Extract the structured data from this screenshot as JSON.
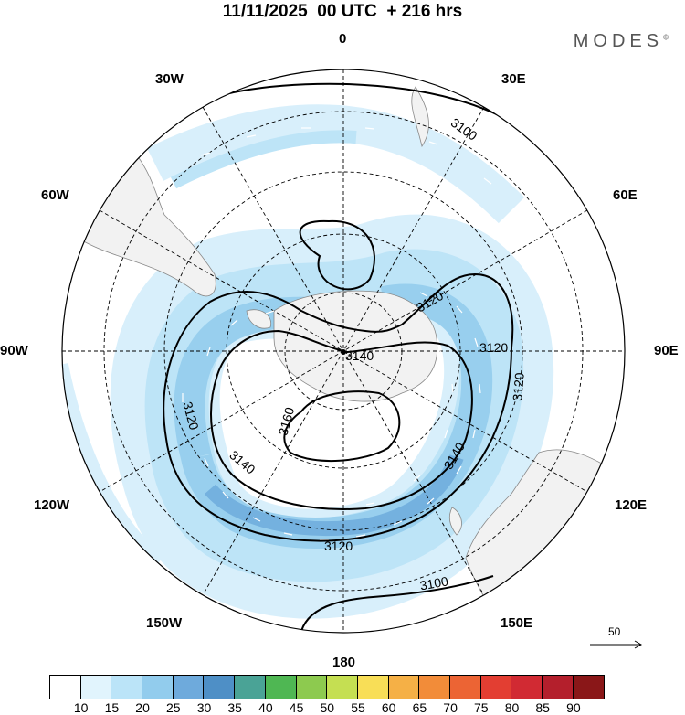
{
  "header": {
    "title": "11/11/2025  00 UTC  + 216 hrs",
    "brand": "MODES",
    "brand_mark": "©"
  },
  "map": {
    "projection": "south polar stereographic",
    "longitude_labels": {
      "top": "0",
      "top_right": "30E",
      "right_upper": "60E",
      "right": "90E",
      "right_lower": "120E",
      "bottom_right": "150E",
      "bottom": "180",
      "bottom_left": "150W",
      "left_lower": "120W",
      "left": "90W",
      "left_upper": "60W",
      "top_left": "30W"
    },
    "contour_labels": [
      "3100",
      "3120",
      "3140",
      "3160",
      "3140",
      "3120",
      "3120",
      "3120",
      "3140",
      "3120",
      "3100"
    ],
    "reference_vector": "50"
  },
  "colorbar": {
    "colors": [
      "#ffffff",
      "#e1f4fd",
      "#bbe4f8",
      "#92cced",
      "#6eaadc",
      "#4e8fc6",
      "#4aa396",
      "#4fb753",
      "#8dca4f",
      "#c5df52",
      "#f8de57",
      "#f5b046",
      "#f28c39",
      "#ec6434",
      "#e33e32",
      "#d12a33",
      "#b41f2c",
      "#8a1718"
    ],
    "labels": [
      "10",
      "15",
      "20",
      "25",
      "30",
      "35",
      "40",
      "45",
      "50",
      "55",
      "60",
      "65",
      "70",
      "75",
      "80",
      "85",
      "90"
    ]
  }
}
